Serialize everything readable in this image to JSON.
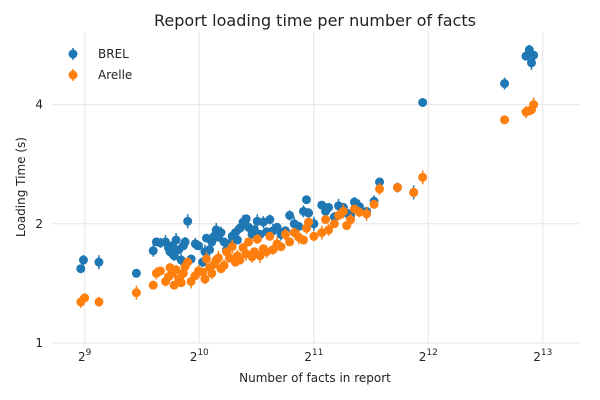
{
  "chart_data": {
    "type": "scatter",
    "title": "Report loading time per number of facts",
    "xlabel": "Number of facts in report",
    "ylabel": "Loading Time (s)",
    "x_scale": "log2",
    "y_scale": "log2",
    "xlim": [
      420,
      10200
    ],
    "ylim": [
      1,
      6.1
    ],
    "x_ticks": [
      512,
      1024,
      2048,
      4096,
      8192
    ],
    "x_tick_labels": [
      {
        "base": "2",
        "exp": "9"
      },
      {
        "base": "2",
        "exp": "10"
      },
      {
        "base": "2",
        "exp": "11"
      },
      {
        "base": "2",
        "exp": "12"
      },
      {
        "base": "2",
        "exp": "13"
      }
    ],
    "y_ticks": [
      1,
      2,
      4
    ],
    "y_tick_labels": [
      "1",
      "2",
      "4"
    ],
    "grid": true,
    "legend_position": "top-left",
    "colors": {
      "BREL": "#1f77b4",
      "Arelle": "#ff7f0e"
    },
    "series": [
      {
        "name": "BREL",
        "points": [
          [
            500,
            1.54
          ],
          [
            508,
            1.62
          ],
          [
            558,
            1.6
          ],
          [
            700,
            1.5
          ],
          [
            775,
            1.71
          ],
          [
            790,
            1.8
          ],
          [
            810,
            1.79
          ],
          [
            835,
            1.8
          ],
          [
            850,
            1.74
          ],
          [
            858,
            1.7
          ],
          [
            870,
            1.76
          ],
          [
            880,
            1.66
          ],
          [
            890,
            1.82
          ],
          [
            905,
            1.72
          ],
          [
            918,
            1.62
          ],
          [
            930,
            1.76
          ],
          [
            940,
            1.8
          ],
          [
            955,
            2.03
          ],
          [
            975,
            1.63
          ],
          [
            1000,
            1.78
          ],
          [
            1020,
            1.76
          ],
          [
            1045,
            1.6
          ],
          [
            1060,
            1.7
          ],
          [
            1070,
            1.84
          ],
          [
            1090,
            1.72
          ],
          [
            1105,
            1.8
          ],
          [
            1120,
            1.86
          ],
          [
            1135,
            1.93
          ],
          [
            1150,
            1.85
          ],
          [
            1168,
            1.9
          ],
          [
            1190,
            1.8
          ],
          [
            1208,
            1.72
          ],
          [
            1230,
            1.78
          ],
          [
            1250,
            1.86
          ],
          [
            1275,
            1.9
          ],
          [
            1290,
            1.82
          ],
          [
            1310,
            1.95
          ],
          [
            1335,
            2.02
          ],
          [
            1360,
            2.06
          ],
          [
            1380,
            1.96
          ],
          [
            1410,
            1.88
          ],
          [
            1430,
            1.93
          ],
          [
            1455,
            2.03
          ],
          [
            1480,
            1.88
          ],
          [
            1510,
            2.02
          ],
          [
            1540,
            1.91
          ],
          [
            1570,
            2.05
          ],
          [
            1600,
            1.92
          ],
          [
            1640,
            1.96
          ],
          [
            1680,
            1.88
          ],
          [
            1725,
            1.92
          ],
          [
            1770,
            2.1
          ],
          [
            1820,
            2.0
          ],
          [
            1870,
            1.97
          ],
          [
            1925,
            2.15
          ],
          [
            1960,
            2.3
          ],
          [
            1985,
            2.13
          ],
          [
            2050,
            2.0
          ],
          [
            2150,
            2.23
          ],
          [
            2200,
            2.15
          ],
          [
            2240,
            2.2
          ],
          [
            2320,
            2.08
          ],
          [
            2380,
            2.22
          ],
          [
            2450,
            2.2
          ],
          [
            2500,
            2.13
          ],
          [
            2560,
            2.1
          ],
          [
            2620,
            2.27
          ],
          [
            2700,
            2.21
          ],
          [
            2820,
            2.15
          ],
          [
            2950,
            2.28
          ],
          [
            3050,
            2.55
          ],
          [
            3400,
            2.47
          ],
          [
            3750,
            2.4
          ],
          [
            3960,
            4.05
          ],
          [
            6500,
            4.52
          ],
          [
            7400,
            5.3
          ],
          [
            7550,
            5.5
          ],
          [
            7650,
            5.1
          ],
          [
            7750,
            5.33
          ]
        ]
      },
      {
        "name": "Arelle",
        "points": [
          [
            500,
            1.27
          ],
          [
            512,
            1.3
          ],
          [
            558,
            1.27
          ],
          [
            700,
            1.34
          ],
          [
            775,
            1.4
          ],
          [
            790,
            1.5
          ],
          [
            810,
            1.52
          ],
          [
            835,
            1.43
          ],
          [
            850,
            1.47
          ],
          [
            858,
            1.55
          ],
          [
            870,
            1.5
          ],
          [
            880,
            1.4
          ],
          [
            890,
            1.53
          ],
          [
            905,
            1.45
          ],
          [
            918,
            1.42
          ],
          [
            930,
            1.5
          ],
          [
            940,
            1.56
          ],
          [
            955,
            1.6
          ],
          [
            975,
            1.43
          ],
          [
            1000,
            1.48
          ],
          [
            1020,
            1.52
          ],
          [
            1045,
            1.51
          ],
          [
            1060,
            1.45
          ],
          [
            1070,
            1.63
          ],
          [
            1090,
            1.55
          ],
          [
            1105,
            1.5
          ],
          [
            1120,
            1.58
          ],
          [
            1135,
            1.62
          ],
          [
            1150,
            1.64
          ],
          [
            1168,
            1.54
          ],
          [
            1190,
            1.57
          ],
          [
            1208,
            1.7
          ],
          [
            1230,
            1.64
          ],
          [
            1250,
            1.75
          ],
          [
            1275,
            1.6
          ],
          [
            1290,
            1.66
          ],
          [
            1310,
            1.62
          ],
          [
            1335,
            1.74
          ],
          [
            1360,
            1.68
          ],
          [
            1380,
            1.8
          ],
          [
            1410,
            1.65
          ],
          [
            1430,
            1.7
          ],
          [
            1455,
            1.83
          ],
          [
            1480,
            1.66
          ],
          [
            1510,
            1.73
          ],
          [
            1540,
            1.7
          ],
          [
            1570,
            1.86
          ],
          [
            1600,
            1.72
          ],
          [
            1640,
            1.78
          ],
          [
            1680,
            1.75
          ],
          [
            1725,
            1.88
          ],
          [
            1770,
            1.8
          ],
          [
            1820,
            1.9
          ],
          [
            1870,
            1.85
          ],
          [
            1925,
            1.82
          ],
          [
            1960,
            1.95
          ],
          [
            1985,
            2.02
          ],
          [
            2050,
            1.86
          ],
          [
            2150,
            1.9
          ],
          [
            2200,
            2.05
          ],
          [
            2240,
            1.93
          ],
          [
            2320,
            2.0
          ],
          [
            2380,
            2.1
          ],
          [
            2450,
            2.15
          ],
          [
            2500,
            1.98
          ],
          [
            2560,
            2.05
          ],
          [
            2620,
            2.18
          ],
          [
            2700,
            2.14
          ],
          [
            2820,
            2.12
          ],
          [
            2950,
            2.24
          ],
          [
            3050,
            2.45
          ],
          [
            3400,
            2.47
          ],
          [
            3750,
            2.4
          ],
          [
            3960,
            2.62
          ],
          [
            6500,
            3.66
          ],
          [
            7400,
            3.83
          ],
          [
            7550,
            3.86
          ],
          [
            7650,
            3.88
          ],
          [
            7750,
            4.0
          ]
        ]
      }
    ]
  }
}
